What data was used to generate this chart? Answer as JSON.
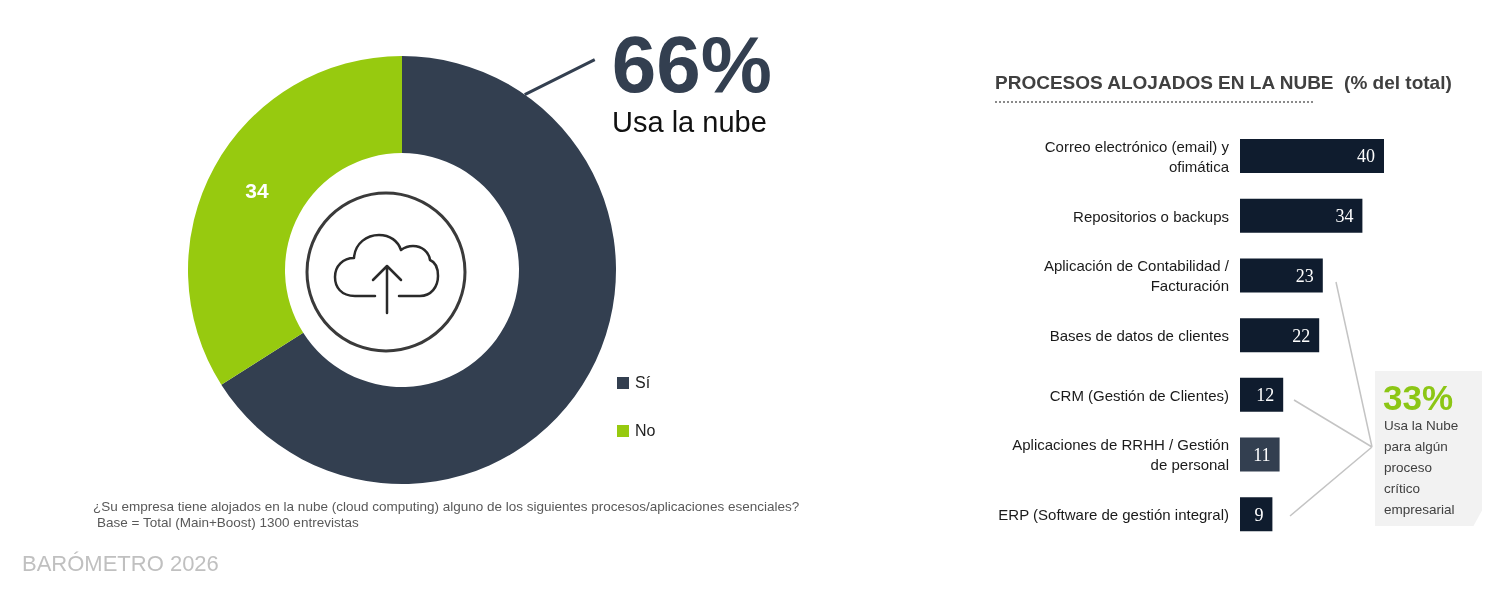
{
  "chart_data": [
    {
      "type": "donut",
      "categories": [
        "Sí",
        "No"
      ],
      "values": [
        66,
        34
      ],
      "colors": [
        "#333f50",
        "#97ca0f"
      ],
      "value_labels": [
        "66%",
        "34"
      ],
      "legend": "bottom right",
      "annotations": [
        "Usa la nube",
        "¿Su empresa tiene alojados en la nube (cloud computing) alguno de los siguientes procesos/aplicaciones esenciales?",
        "Base = Total (Main+Boost) 1300 entrevistas",
        "BARÓMETRO 2026"
      ]
    },
    {
      "type": "bar",
      "orientation": "horizontal",
      "title": "PROCESOS ALOJADOS EN LA NUBE  (% del total)",
      "categories": [
        "Correo electrónico (email) y ofimática",
        "Repositorios o backups",
        "Aplicación de Contabilidad / Facturación",
        "Bases de datos de clientes",
        "CRM (Gestión de Clientes)",
        "Aplicaciones de RRHH / Gestión de personal",
        "ERP (Software de gestión integral)"
      ],
      "values": [
        40,
        34,
        23,
        22,
        12,
        11,
        9
      ],
      "colors": [
        "#0f1c2e",
        "#0f1c2e",
        "#0f1c2e",
        "#0f1c2e",
        "#0f1c2e",
        "#333f50",
        "#0f1c2e"
      ],
      "data_labels": true,
      "tick_labels": "y",
      "annotations": [
        "33%",
        "Usa la Nube para algún proceso crítico empresarial"
      ]
    }
  ]
}
